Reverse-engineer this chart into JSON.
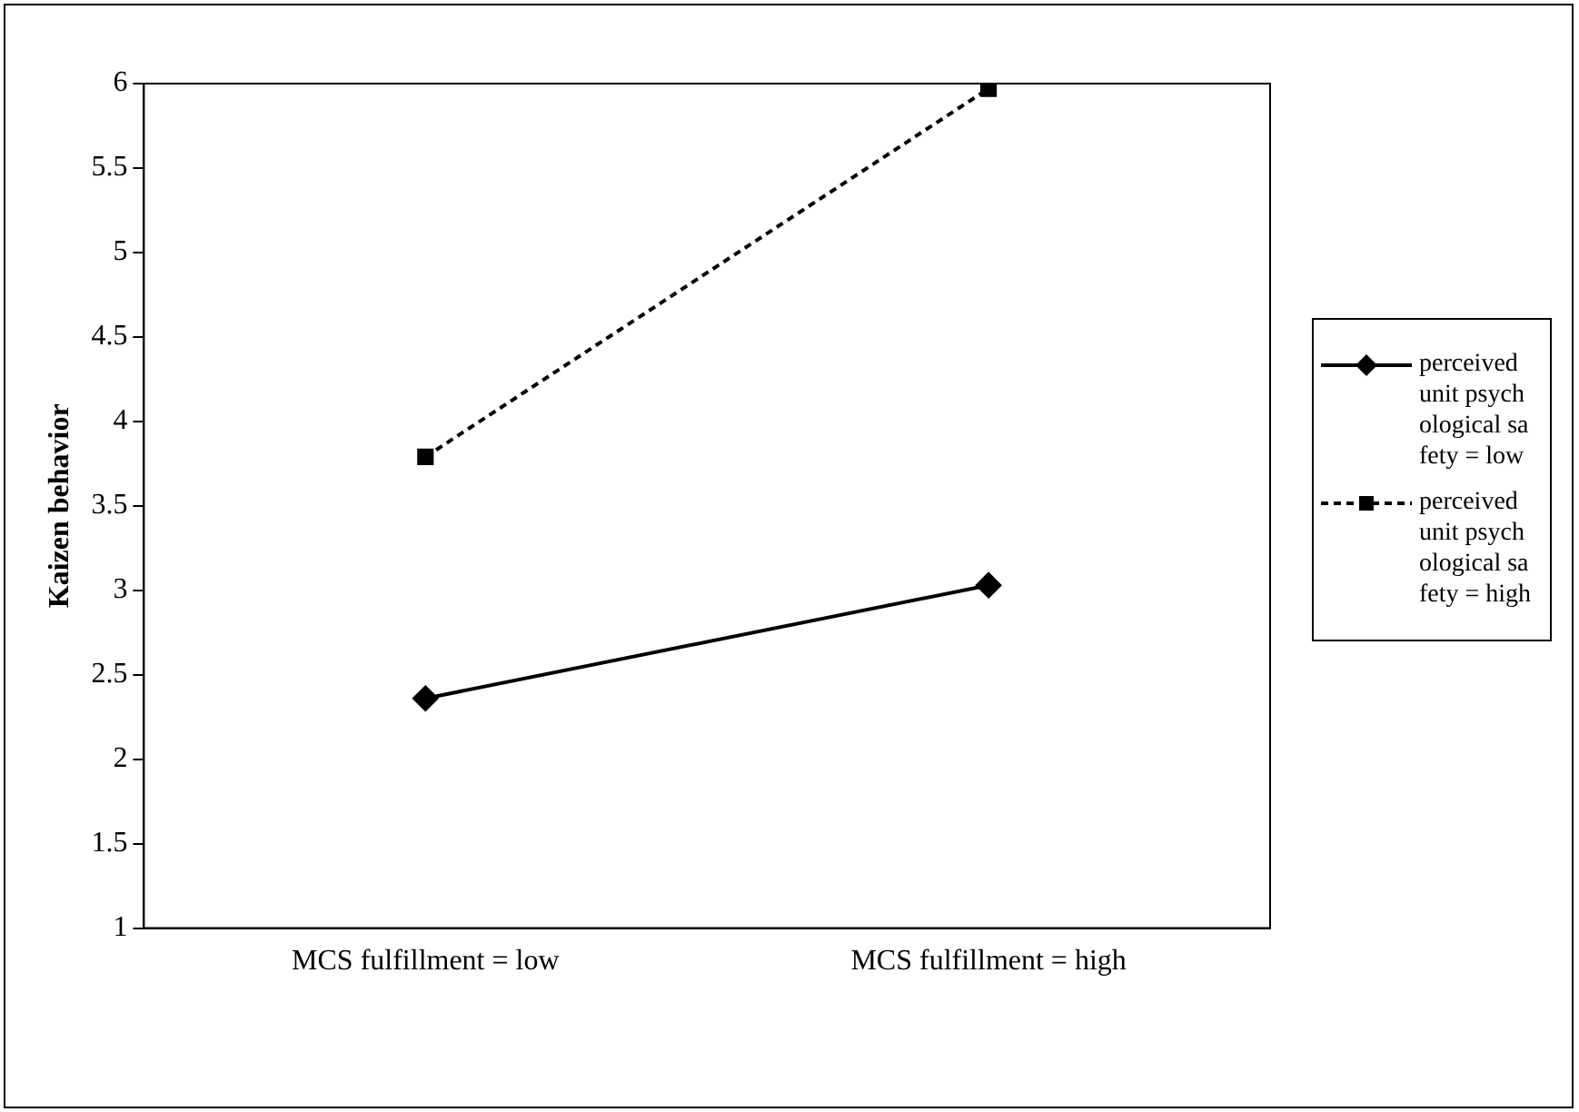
{
  "chart_data": {
    "type": "line",
    "ylabel": "Kaizen behavior",
    "categories": [
      "MCS fulfillment = low",
      "MCS fulfillment = high"
    ],
    "series": [
      {
        "name": "perceived unit psychological safety = low",
        "color": "#000000",
        "values": [
          2.36,
          3.03
        ],
        "marker": "diamond",
        "line_style": "solid"
      },
      {
        "name": "perceived unit psychological safety = high",
        "color": "#000000",
        "values": [
          3.79,
          5.97
        ],
        "marker": "square",
        "line_style": "dashed"
      }
    ],
    "ylim": [
      1,
      6
    ],
    "yticks": [
      1,
      1.5,
      2,
      2.5,
      3,
      3.5,
      4,
      4.5,
      5,
      5.5,
      6
    ],
    "grid": false,
    "legend": "right"
  }
}
